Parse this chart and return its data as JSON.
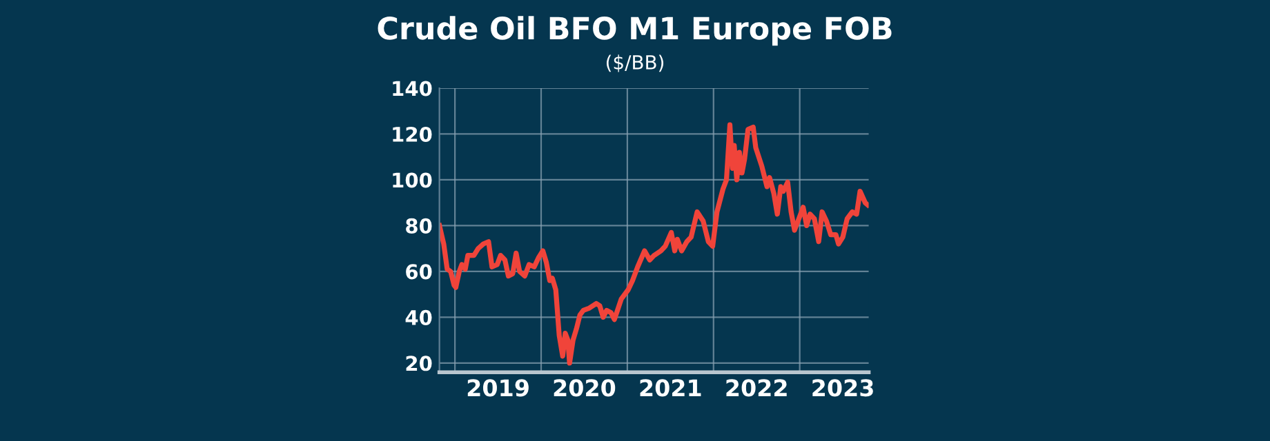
{
  "chart_data": {
    "type": "line",
    "title": "Crude Oil BFO M1 Europe FOB",
    "subtitle": "($/BB)",
    "series": [
      {
        "color": "#f0443a",
        "x": [
          2018.82,
          2018.87,
          2018.91,
          2018.95,
          2018.99,
          2019.01,
          2019.05,
          2019.08,
          2019.12,
          2019.15,
          2019.22,
          2019.27,
          2019.33,
          2019.39,
          2019.43,
          2019.49,
          2019.53,
          2019.58,
          2019.62,
          2019.67,
          2019.71,
          2019.75,
          2019.81,
          2019.86,
          2019.92,
          2019.97,
          2020.02,
          2020.06,
          2020.1,
          2020.13,
          2020.17,
          2020.21,
          2020.25,
          2020.28,
          2020.31,
          2020.33,
          2020.37,
          2020.41,
          2020.45,
          2020.49,
          2020.56,
          2020.64,
          2020.68,
          2020.72,
          2020.76,
          2020.81,
          2020.85,
          2020.93,
          2021.01,
          2021.06,
          2021.12,
          2021.2,
          2021.26,
          2021.31,
          2021.39,
          2021.44,
          2021.51,
          2021.55,
          2021.58,
          2021.63,
          2021.69,
          2021.74,
          2021.81,
          2021.88,
          2021.94,
          2021.99,
          2022.04,
          2022.11,
          2022.15,
          2022.19,
          2022.22,
          2022.24,
          2022.27,
          2022.3,
          2022.33,
          2022.36,
          2022.4,
          2022.46,
          2022.49,
          2022.56,
          2022.62,
          2022.65,
          2022.7,
          2022.74,
          2022.78,
          2022.81,
          2022.86,
          2022.9,
          2022.94,
          2022.99,
          2023.04,
          2023.08,
          2023.12,
          2023.17,
          2023.22,
          2023.26,
          2023.31,
          2023.36,
          2023.42,
          2023.45,
          2023.5,
          2023.55,
          2023.61,
          2023.66,
          2023.7,
          2023.76,
          2023.79
        ],
        "values": [
          80,
          72,
          61,
          60,
          54,
          53,
          60,
          63,
          61,
          67,
          67,
          70,
          72,
          73,
          62,
          63,
          67,
          65,
          58,
          59,
          68,
          60,
          58,
          63,
          62,
          66,
          69,
          64,
          56,
          57,
          52,
          32,
          23,
          33,
          30,
          20,
          30,
          35,
          41,
          43,
          44,
          46,
          45,
          40,
          43,
          42,
          39,
          48,
          52,
          56,
          62,
          69,
          65,
          67,
          69,
          71,
          77,
          69,
          74,
          69,
          73,
          75,
          86,
          82,
          73,
          71,
          86,
          96,
          100,
          124,
          105,
          115,
          100,
          112,
          103,
          109,
          122,
          123,
          114,
          106,
          97,
          101,
          94,
          85,
          97,
          95,
          99,
          86,
          78,
          83,
          88,
          80,
          85,
          83,
          73,
          86,
          82,
          76,
          76,
          72,
          75,
          83,
          86,
          85,
          95,
          90,
          89
        ]
      }
    ],
    "xlim": [
      2018.82,
      2023.8
    ],
    "xticks": [
      {
        "value": 2019,
        "label": null
      },
      {
        "value": 2019.5,
        "label": "2019"
      },
      {
        "value": 2020,
        "label": null
      },
      {
        "value": 2020.5,
        "label": "2020"
      },
      {
        "value": 2021,
        "label": null
      },
      {
        "value": 2021.5,
        "label": "2021"
      },
      {
        "value": 2022,
        "label": null
      },
      {
        "value": 2022.5,
        "label": "2022"
      },
      {
        "value": 2023,
        "label": null
      },
      {
        "value": 2023.5,
        "label": "2023"
      }
    ],
    "ylim": [
      16,
      140
    ],
    "yticks": [
      20,
      40,
      60,
      80,
      100,
      120,
      140
    ],
    "grid": true,
    "marker": "none",
    "line_style": "solid"
  }
}
